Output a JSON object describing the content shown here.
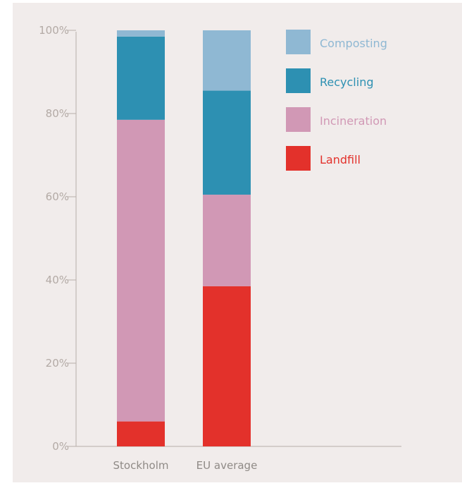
{
  "chart_data": {
    "type": "bar",
    "stacked": true,
    "categories": [
      "Stockholm",
      "EU average"
    ],
    "series": [
      {
        "name": "Landfill",
        "values": [
          6,
          38.5
        ],
        "color": "#e3312b"
      },
      {
        "name": "Incineration",
        "values": [
          72.5,
          22
        ],
        "color": "#d198b5"
      },
      {
        "name": "Recycling",
        "values": [
          20,
          25
        ],
        "color": "#2d90b2"
      },
      {
        "name": "Composting",
        "values": [
          1.5,
          14.5
        ],
        "color": "#8fb8d3"
      }
    ],
    "ylim": [
      0,
      100
    ],
    "yticks": [
      "0%",
      "20%",
      "40%",
      "60%",
      "80%",
      "100%"
    ],
    "ytick_values": [
      0,
      20,
      40,
      60,
      80,
      100
    ],
    "legend_order": [
      "Composting",
      "Recycling",
      "Incineration",
      "Landfill"
    ],
    "legend_position": "top-right",
    "grid": false,
    "title": "",
    "xlabel": "",
    "ylabel": ""
  }
}
